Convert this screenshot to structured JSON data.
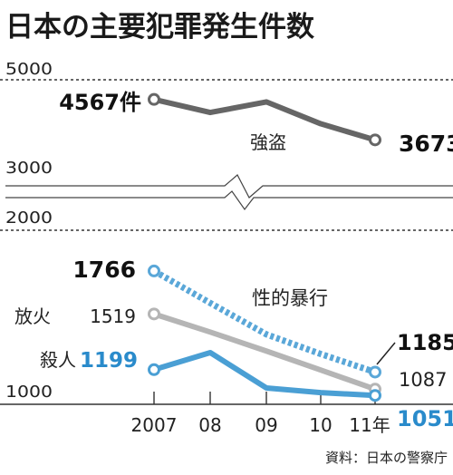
{
  "chart_data": {
    "type": "line",
    "title": "日本の主要犯罪発生件数",
    "source": "資料：日本の警察庁",
    "categories": [
      "2007",
      "08",
      "09",
      "10",
      "11年"
    ],
    "y_tick_labels": [
      "5000",
      "3000",
      "2000",
      "1000"
    ],
    "upper_panel": {
      "ylim": [
        3000,
        5000
      ]
    },
    "lower_panel": {
      "ylim": [
        1000,
        2000
      ]
    },
    "series": [
      {
        "name": "強盗",
        "color": "#666666",
        "style": "solid",
        "values": [
          4567,
          4278,
          4512,
          4029,
          3673
        ],
        "start_label": "4567件",
        "end_label": "3673"
      },
      {
        "name": "性的暴行",
        "color": "#5aa7d8",
        "style": "dotted",
        "values": [
          1766,
          1582,
          1402,
          1289,
          1185
        ],
        "start_label": "1766",
        "end_label": "1185"
      },
      {
        "name": "放火",
        "color": "#b5b5b5",
        "style": "solid",
        "values": [
          1519,
          1415,
          1306,
          1197,
          1087
        ],
        "start_label": "1519",
        "end_label": "1087"
      },
      {
        "name": "殺人",
        "color": "#4a9fd4",
        "style": "solid",
        "values": [
          1199,
          1297,
          1094,
          1067,
          1051
        ],
        "start_label": "1199",
        "end_label": "1051"
      }
    ]
  }
}
